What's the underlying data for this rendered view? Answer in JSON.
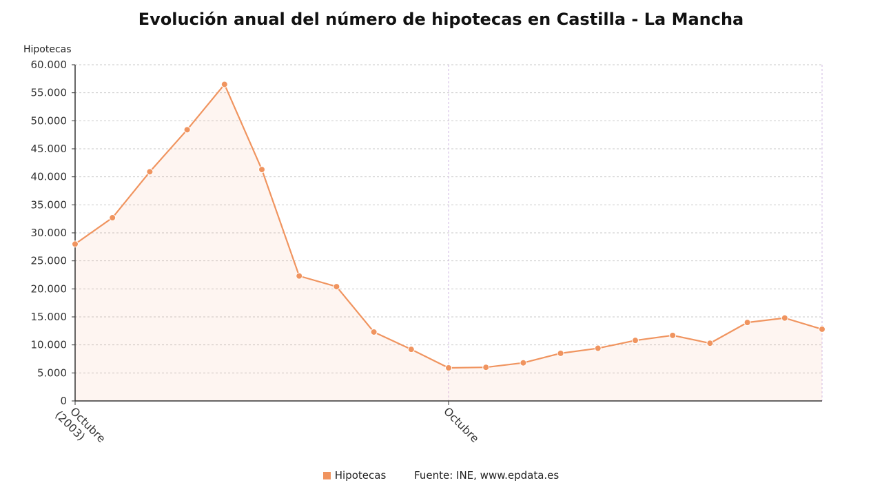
{
  "chart_data": {
    "type": "area",
    "title": "Evolución anual del número de hipotecas en Castilla - La Mancha",
    "ylabel": "Hipotecas",
    "xlabel": "",
    "ylim": [
      0,
      60000
    ],
    "yticks": [
      0,
      5000,
      10000,
      15000,
      20000,
      25000,
      30000,
      35000,
      40000,
      45000,
      50000,
      55000,
      60000
    ],
    "ytick_labels": [
      "0",
      "5.000",
      "10.000",
      "15.000",
      "20.000",
      "25.000",
      "30.000",
      "35.000",
      "40.000",
      "45.000",
      "50.000",
      "55.000",
      "60.000"
    ],
    "xtick_labels": [
      {
        "index": 0,
        "lines": [
          "Octubre",
          "(2003)"
        ]
      },
      {
        "index": 10,
        "lines": [
          "Octubre"
        ]
      }
    ],
    "grid": true,
    "legend_position": "bottom",
    "series": [
      {
        "name": "Hipotecas",
        "color": "#f0945f",
        "values": [
          28000,
          32700,
          40900,
          48400,
          56500,
          41300,
          22300,
          20400,
          12300,
          9200,
          5900,
          6000,
          6800,
          8500,
          9400,
          10800,
          11700,
          10300,
          14000,
          14800,
          12800
        ]
      }
    ],
    "source": "Fuente: INE, www.epdata.es"
  }
}
